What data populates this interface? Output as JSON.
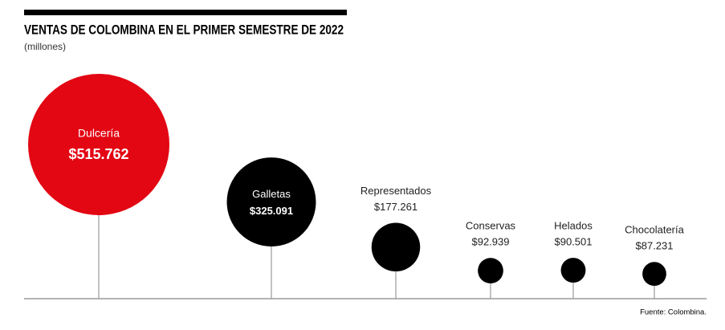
{
  "chart_data": {
    "type": "bubble",
    "title": "VENTAS DE COLOMBINA EN EL PRIMER SEMESTRE DE 2022",
    "subtitle": "(millones)",
    "source": "Fuente: Colombina.",
    "categories": [
      "Dulcería",
      "Galletas",
      "Representados",
      "Conservas",
      "Helados",
      "Chocolatería"
    ],
    "values": [
      515762,
      325091,
      177261,
      92939,
      90501,
      87231
    ],
    "value_labels": [
      "$515.762",
      "$325.091",
      "$177.261",
      "$92.939",
      "$90.501",
      "$87.231"
    ],
    "colors": [
      "#e30613",
      "#000000",
      "#000000",
      "#000000",
      "#000000",
      "#000000"
    ]
  }
}
